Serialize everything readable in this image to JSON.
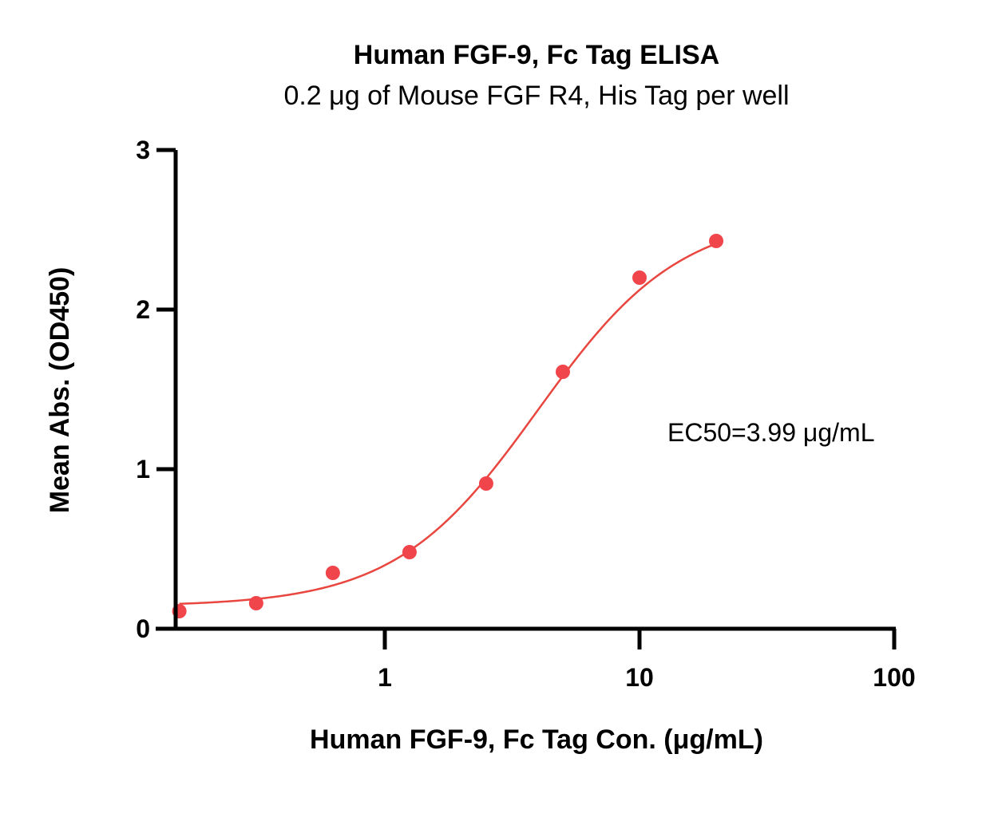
{
  "chart_data": {
    "type": "scatter",
    "title": "Human FGF-9, Fc Tag ELISA",
    "subtitle": "0.2 μg of Mouse FGF R4, His Tag  per well",
    "xlabel": "Human FGF-9, Fc Tag Con. (μg/mL)",
    "ylabel": "Mean Abs. (OD450)",
    "x_scale": "log",
    "xlim": [
      0.15,
      100
    ],
    "ylim": [
      0,
      3
    ],
    "x_ticks": [
      "1",
      "10",
      "100"
    ],
    "y_ticks": [
      "0",
      "1",
      "2",
      "3"
    ],
    "grid": false,
    "series": [
      {
        "color": "#f0454b",
        "x": [
          0.156,
          0.3125,
          0.625,
          1.25,
          2.5,
          5,
          10,
          20
        ],
        "y": [
          0.11,
          0.16,
          0.35,
          0.48,
          0.91,
          1.61,
          2.2,
          2.43
        ]
      }
    ],
    "fit_curve": {
      "type": "4PL",
      "bottom": 0.14,
      "top": 2.6,
      "ec50": 3.99,
      "hill": 1.55,
      "color": "#e8463f"
    },
    "annotation": "EC50=3.99 μg/mL"
  }
}
